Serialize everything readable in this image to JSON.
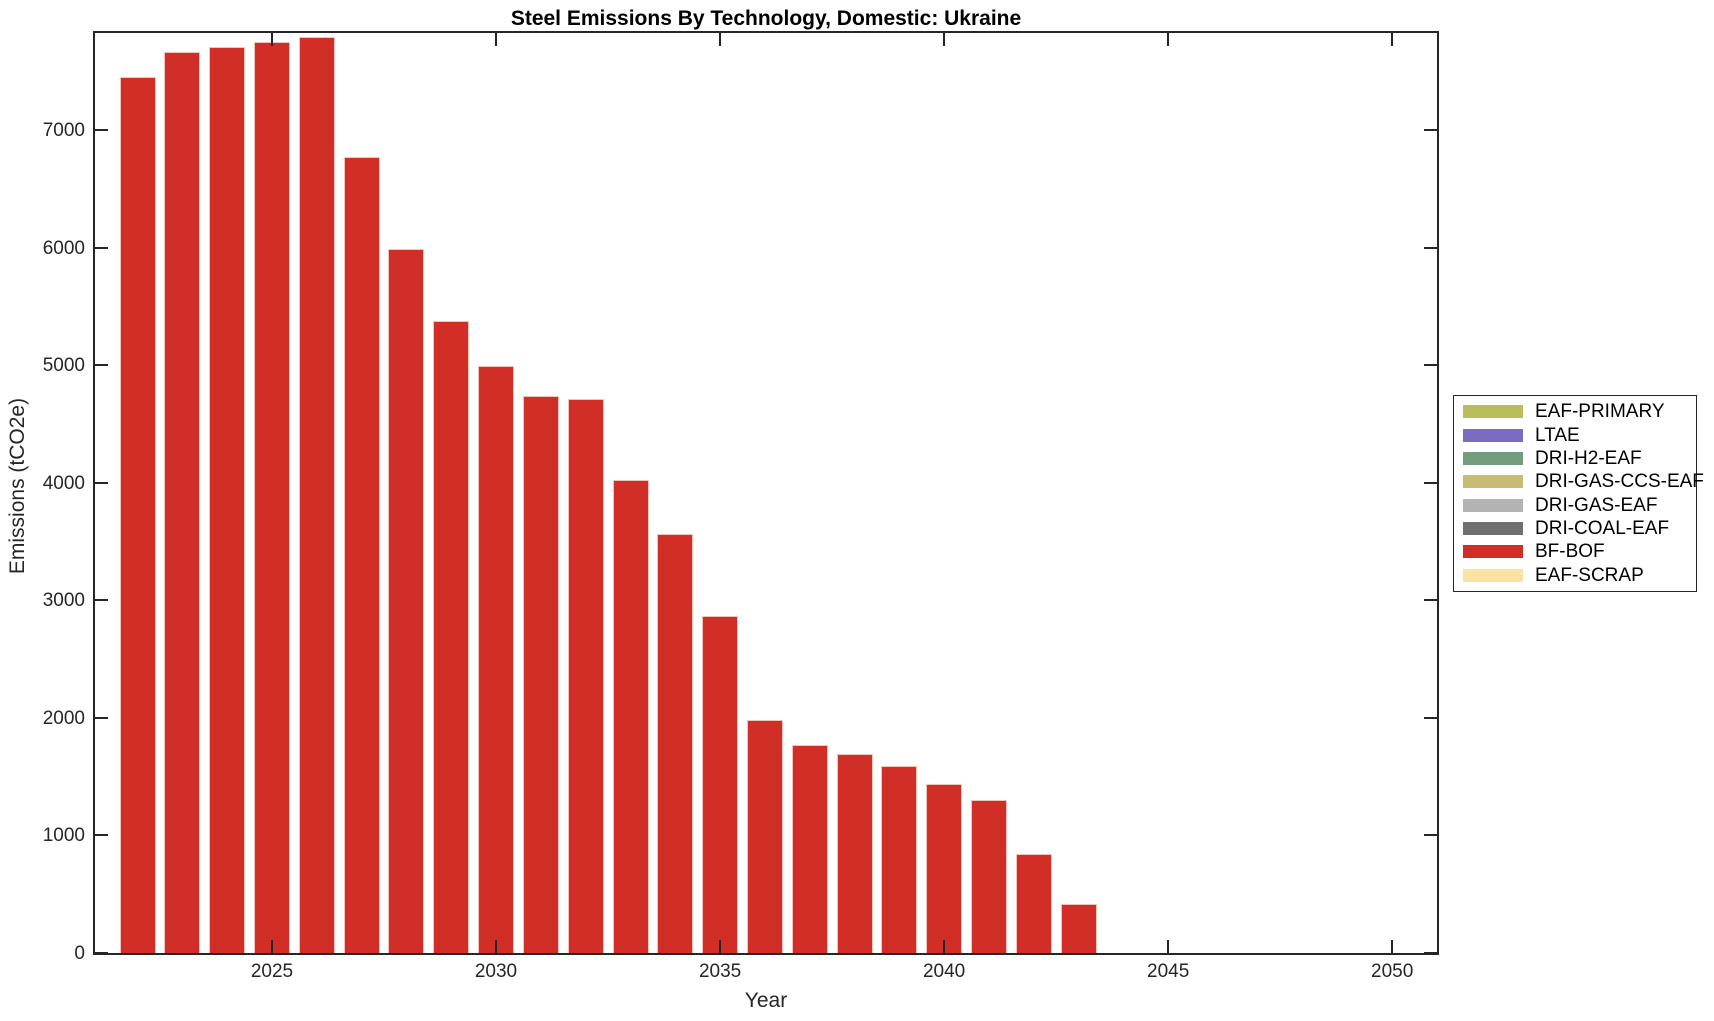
{
  "chart_data": {
    "type": "bar",
    "title": "Steel Emissions By Technology, Domestic: Ukraine",
    "xlabel": "Year",
    "ylabel": "Emissions (tCO2e)",
    "x": [
      2022,
      2023,
      2024,
      2025,
      2026,
      2027,
      2028,
      2029,
      2030,
      2031,
      2032,
      2033,
      2034,
      2035,
      2036,
      2037,
      2038,
      2039,
      2040,
      2041,
      2042,
      2043
    ],
    "series": [
      {
        "name": "BF-BOF",
        "color": "#d12e27",
        "edge_color": "#f2c3b8",
        "values": [
          7450,
          7660,
          7710,
          7750,
          7795,
          6770,
          5990,
          5380,
          4990,
          4740,
          4715,
          4020,
          3560,
          2870,
          1980,
          1770,
          1690,
          1590,
          1440,
          1300,
          840,
          420
        ]
      }
    ],
    "bar_width_years": 0.8,
    "xlim": [
      2021.05,
      2051.0
    ],
    "ylim": [
      0,
      7825
    ],
    "xticks": [
      2025,
      2030,
      2035,
      2040,
      2045,
      2050
    ],
    "yticks": [
      0,
      1000,
      2000,
      3000,
      4000,
      5000,
      6000,
      7000
    ],
    "grid": false,
    "axis_color": "#262626",
    "legend": {
      "position": "right-outside",
      "entries": [
        {
          "label": "EAF-PRIMARY",
          "color": "#b9bd5c"
        },
        {
          "label": "LTAE",
          "color": "#7b6cc2"
        },
        {
          "label": "DRI-H2-EAF",
          "color": "#719d7d"
        },
        {
          "label": "DRI-GAS-CCS-EAF",
          "color": "#c9bc72"
        },
        {
          "label": "DRI-GAS-EAF",
          "color": "#b3b3b3"
        },
        {
          "label": "DRI-COAL-EAF",
          "color": "#6f6f6f"
        },
        {
          "label": "BF-BOF",
          "color": "#d12e27"
        },
        {
          "label": "EAF-SCRAP",
          "color": "#fce2a0"
        }
      ]
    }
  }
}
